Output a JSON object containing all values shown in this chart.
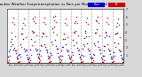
{
  "title": "Milwaukee Weather Evapotranspiration vs Rain per Month (Inches)",
  "title_fontsize": 2.8,
  "background_color": "#d8d8d8",
  "plot_bg_color": "#ffffff",
  "legend_rain_color": "#0000cc",
  "legend_et_color": "#cc0000",
  "legend_label_rain": "Rain",
  "legend_label_et": "ET",
  "n_years": 11,
  "months_per_year": 12,
  "ylim": [
    0,
    7
  ],
  "ytick_vals": [
    1,
    2,
    3,
    4,
    5,
    6,
    7
  ],
  "rain_data": [
    [
      0.9,
      1.5,
      1.8,
      2.8,
      3.2,
      2.5,
      1.8,
      2.0,
      1.7,
      1.3,
      0.8,
      0.6
    ],
    [
      1.1,
      1.2,
      2.5,
      3.8,
      4.5,
      3.2,
      1.9,
      1.5,
      1.8,
      1.1,
      0.7,
      0.5
    ],
    [
      0.7,
      1.8,
      3.1,
      4.2,
      5.8,
      4.1,
      2.8,
      1.9,
      1.6,
      1.2,
      0.9,
      0.6
    ],
    [
      1.2,
      1.6,
      2.3,
      3.5,
      4.0,
      3.8,
      2.5,
      2.1,
      1.8,
      1.4,
      1.0,
      0.7
    ],
    [
      0.8,
      1.3,
      2.8,
      4.5,
      6.0,
      4.8,
      3.0,
      2.2,
      1.9,
      1.3,
      0.8,
      0.5
    ],
    [
      1.0,
      1.7,
      2.1,
      3.2,
      3.8,
      3.1,
      2.4,
      1.8,
      1.5,
      1.1,
      0.8,
      0.6
    ],
    [
      0.9,
      1.4,
      3.0,
      4.1,
      5.2,
      4.2,
      2.7,
      2.0,
      1.7,
      1.2,
      0.8,
      0.5
    ],
    [
      1.1,
      1.9,
      2.4,
      3.3,
      4.2,
      3.5,
      2.6,
      1.9,
      1.6,
      1.2,
      0.9,
      0.6
    ],
    [
      0.7,
      1.2,
      2.6,
      3.9,
      5.5,
      4.4,
      2.8,
      2.1,
      1.8,
      1.3,
      0.7,
      0.5
    ],
    [
      1.0,
      1.6,
      2.2,
      3.4,
      4.1,
      3.6,
      2.5,
      1.9,
      1.6,
      1.2,
      0.8,
      0.6
    ],
    [
      0.8,
      1.4,
      2.7,
      3.8,
      4.8,
      3.9,
      2.6,
      1.8,
      1.5,
      1.1,
      0.7,
      0.5
    ]
  ],
  "et_data": [
    [
      0.2,
      0.4,
      1.0,
      2.2,
      3.9,
      5.3,
      5.9,
      5.1,
      3.5,
      1.7,
      0.6,
      0.2
    ],
    [
      0.2,
      0.3,
      0.9,
      2.1,
      3.8,
      5.2,
      5.8,
      5.0,
      3.4,
      1.6,
      0.5,
      0.2
    ],
    [
      0.2,
      0.4,
      1.1,
      2.3,
      4.0,
      5.4,
      6.0,
      5.2,
      3.6,
      1.8,
      0.7,
      0.2
    ],
    [
      0.2,
      0.4,
      1.0,
      2.2,
      3.9,
      5.3,
      5.9,
      5.1,
      3.5,
      1.7,
      0.6,
      0.2
    ],
    [
      0.2,
      0.3,
      1.1,
      2.4,
      4.1,
      5.5,
      6.1,
      5.3,
      3.7,
      1.9,
      0.7,
      0.2
    ],
    [
      0.2,
      0.4,
      1.0,
      2.1,
      3.8,
      5.2,
      5.8,
      5.0,
      3.4,
      1.6,
      0.6,
      0.2
    ],
    [
      0.2,
      0.4,
      1.1,
      2.3,
      4.0,
      5.4,
      6.0,
      5.2,
      3.6,
      1.8,
      0.7,
      0.2
    ],
    [
      0.2,
      0.3,
      1.0,
      2.2,
      3.9,
      5.3,
      5.9,
      5.1,
      3.5,
      1.7,
      0.6,
      0.2
    ],
    [
      0.2,
      0.4,
      1.1,
      2.3,
      4.0,
      5.4,
      6.0,
      5.2,
      3.6,
      1.8,
      0.7,
      0.2
    ],
    [
      0.2,
      0.4,
      1.0,
      2.2,
      3.9,
      5.3,
      5.9,
      5.1,
      3.5,
      1.7,
      0.6,
      0.2
    ],
    [
      0.2,
      0.3,
      1.0,
      2.1,
      3.8,
      5.2,
      5.8,
      5.0,
      3.4,
      1.6,
      0.6,
      0.2
    ]
  ],
  "month_labels": [
    "J",
    "F",
    "M",
    "A",
    "M",
    "J",
    "J",
    "A",
    "S",
    "O",
    "N",
    "D"
  ],
  "year_start": 1995,
  "gridline_color": "#aaaaaa",
  "marker_size": 0.9
}
